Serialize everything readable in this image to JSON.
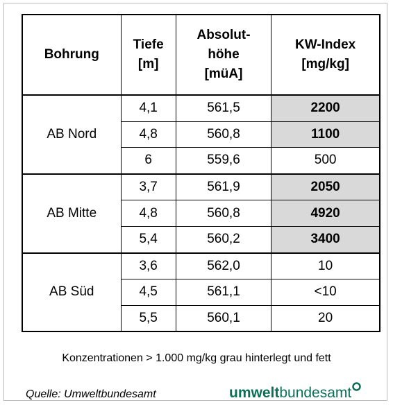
{
  "table": {
    "header": [
      [
        "Bohrung"
      ],
      [
        "Tiefe",
        "[m]"
      ],
      [
        "Absolut-",
        "höhe",
        "[müA]"
      ],
      [
        "KW-Index",
        "[mg/kg]"
      ]
    ],
    "groups": [
      {
        "name": "AB Nord",
        "rows": [
          {
            "cells": [
              "4,1",
              "561,5",
              "2200"
            ],
            "highlight": true
          },
          {
            "cells": [
              "4,8",
              "560,8",
              "1100"
            ],
            "highlight": true
          },
          {
            "cells": [
              "6",
              "559,6",
              "500"
            ],
            "highlight": false
          }
        ]
      },
      {
        "name": "AB Mitte",
        "rows": [
          {
            "cells": [
              "3,7",
              "561,9",
              "2050"
            ],
            "highlight": true
          },
          {
            "cells": [
              "4,8",
              "560,8",
              "4920"
            ],
            "highlight": true
          },
          {
            "cells": [
              "5,4",
              "560,2",
              "3400"
            ],
            "highlight": true
          }
        ]
      },
      {
        "name": "AB Süd",
        "rows": [
          {
            "cells": [
              "3,6",
              "562,0",
              "10"
            ],
            "highlight": false
          },
          {
            "cells": [
              "4,5",
              "561,1",
              "<10"
            ],
            "highlight": false
          },
          {
            "cells": [
              "5,5",
              "560,1",
              "20"
            ],
            "highlight": false
          }
        ]
      }
    ]
  },
  "note": "Konzentrationen > 1.000 mg/kg grau hinterlegt und fett",
  "source": "Quelle: Umweltbundesamt",
  "logo": {
    "bold": "umwelt",
    "regular": "bundesamt"
  }
}
